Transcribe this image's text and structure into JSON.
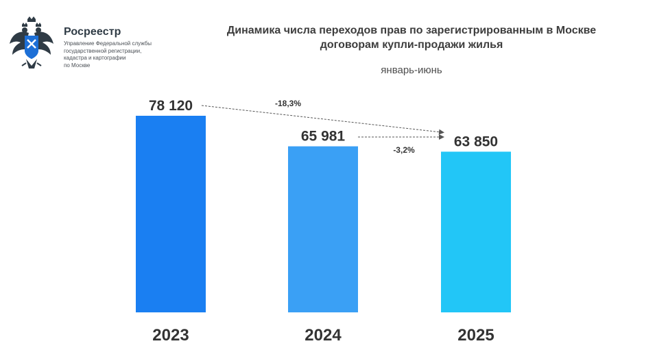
{
  "org": {
    "name": "Росреестр",
    "subtitle_lines": [
      "Управление Федеральной службы",
      "государственной регистрации,",
      "кадастра и картографии",
      "по Москве"
    ]
  },
  "chart_data": {
    "type": "bar",
    "title": "Динамика числа переходов прав по зарегистрированным в Москве договорам купли-продажи жилья",
    "title_lines": [
      "Динамика числа переходов прав по зарегистрированным в Москве",
      "договорам купли-продажи жилья"
    ],
    "subtitle": "январь-июнь",
    "categories": [
      "2023",
      "2024",
      "2025"
    ],
    "values": [
      78120,
      65981,
      63850
    ],
    "value_labels": [
      "78 120",
      "65 981",
      "63 850"
    ],
    "colors": [
      "#1a7ff2",
      "#3aa0f5",
      "#22c6f7"
    ],
    "annotations": [
      {
        "from": "2023",
        "to": "2025",
        "text": "-18,3%"
      },
      {
        "from": "2024",
        "to": "2025",
        "text": "-3,2%"
      }
    ],
    "ylim": [
      0,
      100000
    ],
    "grid": false,
    "legend": "none",
    "xlabel": "",
    "ylabel": ""
  }
}
